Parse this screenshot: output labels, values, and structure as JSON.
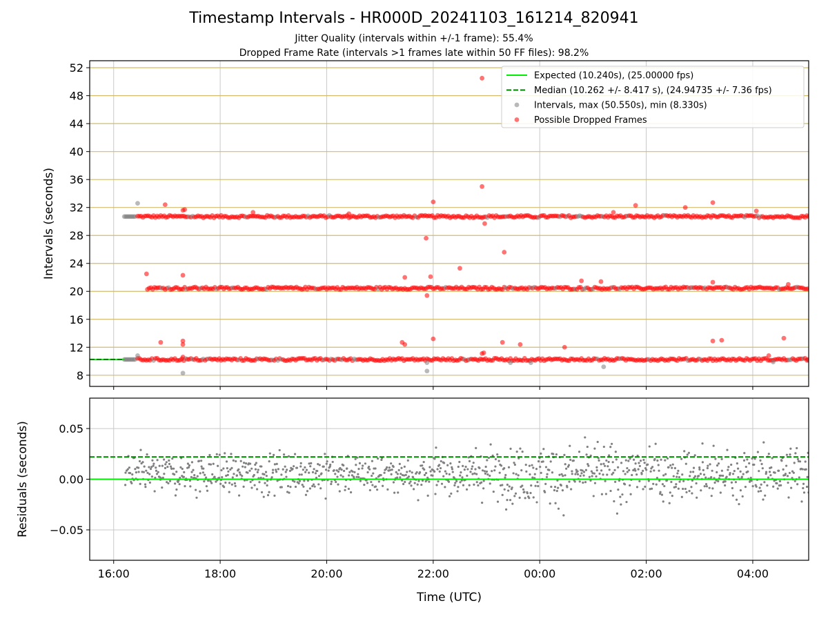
{
  "figure": {
    "title": "Timestamp Intervals - HR000D_20241103_161214_820941",
    "subtitle_1": "Jitter Quality (intervals within +/-1 frame): 55.4%",
    "subtitle_2": "Dropped Frame Rate (intervals >1 frames late within 50 FF files): 98.2%"
  },
  "colors": {
    "expected": "#00ee00",
    "median": "#007f00",
    "intervals": "#808080",
    "dropped": "#ff0000",
    "hgrid_top": "#d2bc6a",
    "grid": "#c8c8c8"
  },
  "chart_data": [
    {
      "type": "scatter",
      "panel": "intervals",
      "title": "",
      "xlabel": "",
      "ylabel": "Intervals (seconds)",
      "x_is_time": true,
      "xlim": [
        "16:12",
        "05:03"
      ],
      "ylim": [
        6.4,
        53.0
      ],
      "y_ticks": [
        8,
        12,
        16,
        20,
        24,
        28,
        32,
        36,
        40,
        44,
        48,
        52
      ],
      "legend_position": "top-right",
      "legend": [
        "Expected (10.240s), (25.00000 fps)",
        "Median (10.262 +/- 8.417 s), (24.94735 +/- 7.36 fps)",
        "Intervals, max (50.550s), min (8.330s)",
        "Possible Dropped Frames"
      ],
      "series": [
        {
          "name": "Expected (10.240s), (25.00000 fps)",
          "kind": "hline",
          "value": 10.24
        },
        {
          "name": "Median (10.262 +/- 8.417 s), (24.94735 +/- 7.36 fps)",
          "kind": "hline-dashed",
          "value": 10.262,
          "x_end": "16:12"
        },
        {
          "name": "Intervals, max (50.550s), min (8.330s)",
          "kind": "scatter",
          "bands": [
            {
              "x_from": "16:12",
              "x_to": "16:25",
              "y": 30.7
            },
            {
              "x_from": "16:12",
              "x_to": "16:25",
              "y": 10.25
            }
          ],
          "points": [
            {
              "x": "16:27",
              "y": 32.6
            },
            {
              "x": "16:27",
              "y": 10.8
            },
            {
              "x": "17:18",
              "y": 8.3
            },
            {
              "x": "21:53",
              "y": 8.6
            },
            {
              "x": "21:53",
              "y": 9.8
            },
            {
              "x": "23:27",
              "y": 9.8
            },
            {
              "x": "23:50",
              "y": 9.8
            },
            {
              "x": "01:12",
              "y": 9.2
            },
            {
              "x": "04:23",
              "y": 9.9
            }
          ]
        },
        {
          "name": "Possible Dropped Frames",
          "kind": "scatter",
          "bands": [
            {
              "x_from": "16:27",
              "x_to": "05:03",
              "y": 30.7
            },
            {
              "x_from": "16:38",
              "x_to": "05:03",
              "y": 20.45
            },
            {
              "x_from": "16:27",
              "x_to": "05:03",
              "y": 10.25
            }
          ],
          "points": [
            {
              "x": "22:55",
              "y": 50.5
            },
            {
              "x": "22:55",
              "y": 35.0
            },
            {
              "x": "22:58",
              "y": 29.7
            },
            {
              "x": "23:20",
              "y": 25.6
            },
            {
              "x": "21:52",
              "y": 27.6
            },
            {
              "x": "22:00",
              "y": 32.8
            },
            {
              "x": "22:30",
              "y": 23.3
            },
            {
              "x": "21:28",
              "y": 22.0
            },
            {
              "x": "21:57",
              "y": 22.1
            },
            {
              "x": "21:53",
              "y": 19.4
            },
            {
              "x": "16:37",
              "y": 22.5
            },
            {
              "x": "17:18",
              "y": 22.3
            },
            {
              "x": "16:58",
              "y": 32.4
            },
            {
              "x": "17:18",
              "y": 31.6
            },
            {
              "x": "17:20",
              "y": 31.7
            },
            {
              "x": "18:37",
              "y": 31.3
            },
            {
              "x": "20:25",
              "y": 31.1
            },
            {
              "x": "01:23",
              "y": 31.3
            },
            {
              "x": "01:48",
              "y": 32.3
            },
            {
              "x": "02:44",
              "y": 32.0
            },
            {
              "x": "03:15",
              "y": 32.7
            },
            {
              "x": "04:04",
              "y": 31.5
            },
            {
              "x": "00:47",
              "y": 21.5
            },
            {
              "x": "01:09",
              "y": 21.4
            },
            {
              "x": "03:15",
              "y": 21.3
            },
            {
              "x": "04:40",
              "y": 21.0
            },
            {
              "x": "16:53",
              "y": 12.7
            },
            {
              "x": "17:18",
              "y": 12.9
            },
            {
              "x": "17:18",
              "y": 12.4
            },
            {
              "x": "22:00",
              "y": 13.2
            },
            {
              "x": "21:25",
              "y": 12.7
            },
            {
              "x": "21:28",
              "y": 12.4
            },
            {
              "x": "23:18",
              "y": 12.7
            },
            {
              "x": "23:38",
              "y": 12.4
            },
            {
              "x": "00:28",
              "y": 12.0
            },
            {
              "x": "03:15",
              "y": 12.9
            },
            {
              "x": "03:25",
              "y": 13.0
            },
            {
              "x": "04:35",
              "y": 13.3
            },
            {
              "x": "04:18",
              "y": 10.8
            },
            {
              "x": "22:55",
              "y": 11.1
            },
            {
              "x": "22:57",
              "y": 11.2
            },
            {
              "x": "17:18",
              "y": 10.6
            },
            {
              "x": "05:02",
              "y": 10.25
            }
          ]
        }
      ]
    },
    {
      "type": "scatter",
      "panel": "residuals",
      "title": "",
      "xlabel": "Time (UTC)",
      "ylabel": "Residuals (seconds)",
      "x_is_time": true,
      "xlim": [
        "15:33",
        "05:03"
      ],
      "x_ticks": [
        "16:00",
        "18:00",
        "20:00",
        "22:00",
        "00:00",
        "02:00",
        "04:00"
      ],
      "ylim": [
        -0.08,
        0.08
      ],
      "y_ticks": [
        -0.05,
        0.0,
        0.05
      ],
      "y_tick_labels": [
        "−0.05",
        "0.00",
        "0.05"
      ],
      "series": [
        {
          "name": "",
          "kind": "hline",
          "value": 0.0
        },
        {
          "name": "",
          "kind": "hline-dashed",
          "value": 0.022
        },
        {
          "name": "",
          "kind": "scatter",
          "x_from": "16:13",
          "x_to": "05:03",
          "mean": 0.005,
          "spread": 0.015,
          "count": 1100
        }
      ]
    }
  ]
}
